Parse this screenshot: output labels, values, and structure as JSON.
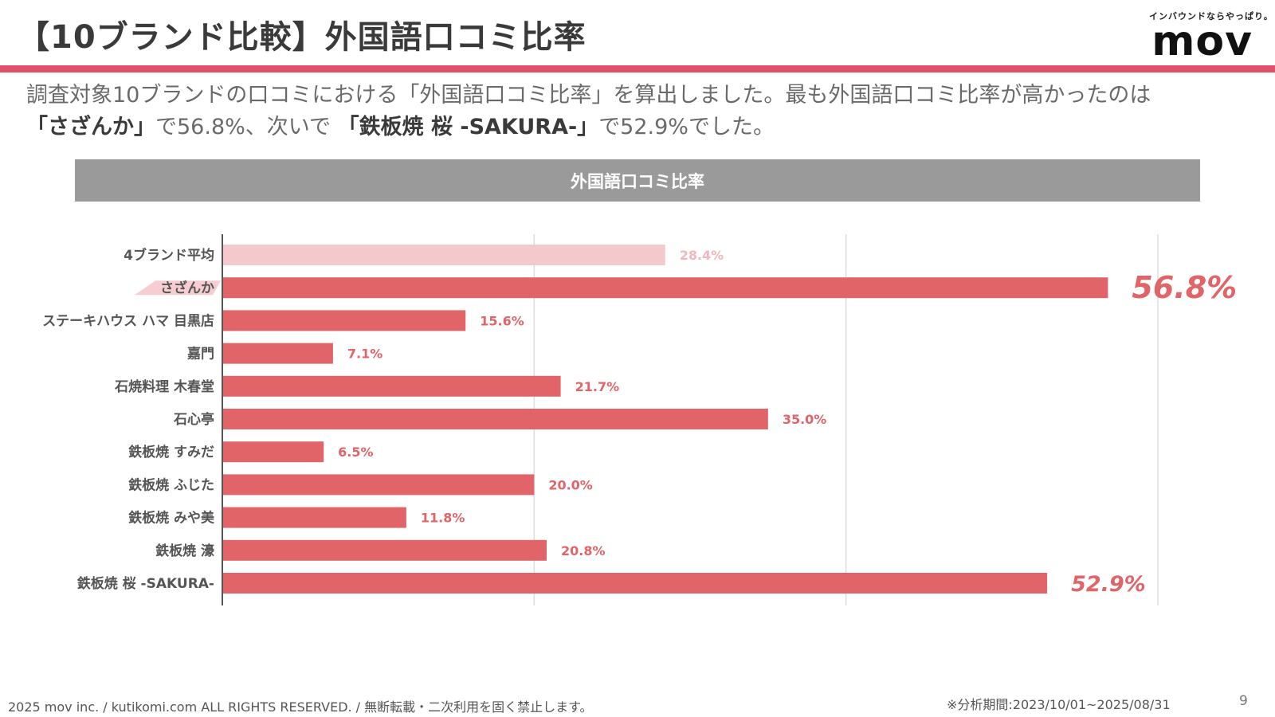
{
  "header": {
    "title": "【10ブランド比較】外国語口コミ比率",
    "logo_tagline": "インバウンドならやっぱり。",
    "logo_word": "mov"
  },
  "description": {
    "line1": "調査対象10ブランドの口コミにおける「外国語口コミ比率」を算出しました。最も外国語口コミ比率が高かったのは",
    "line2_brand1": "「さざんか」",
    "line2_part1": "で56.8%、次いで",
    "line2_brand2": "「鉄板焼 桜 -SAKURA-」",
    "line2_part2": "で52.9%でした。"
  },
  "colors": {
    "bar": "#e06468",
    "bar_average": "#f3c9cc",
    "label_average": "#f0b8bc",
    "accent": "#e0506a",
    "axis": "#555555",
    "grid": "#dddddd",
    "category_text": "#555555"
  },
  "chart_data": {
    "type": "bar",
    "orientation": "horizontal",
    "title": "外国語口コミ比率",
    "categories": [
      "4ブランド平均",
      "さざんか",
      "ステーキハウス ハマ 目黒店",
      "嘉門",
      "石焼料理 木春堂",
      "石心亭",
      "鉄板焼 すみだ",
      "鉄板焼 ふじた",
      "鉄板焼 みや美",
      "鉄板焼 濠",
      "鉄板焼 桜 -SAKURA-"
    ],
    "values": [
      28.4,
      56.8,
      15.6,
      7.1,
      21.7,
      35.0,
      6.5,
      20.0,
      11.8,
      20.8,
      52.9
    ],
    "value_labels": [
      "28.4%",
      "56.8%",
      "15.6%",
      "7.1%",
      "21.7%",
      "35.0%",
      "6.5%",
      "20.0%",
      "11.8%",
      "20.8%",
      "52.9%"
    ],
    "highlight": [
      "さざんか",
      "鉄板焼 桜 -SAKURA-"
    ],
    "average_category": "4ブランド平均",
    "xlim": [
      0,
      60
    ],
    "x_gridlines": [
      20,
      40,
      60
    ],
    "xlabel": "",
    "ylabel": "",
    "grid": true
  },
  "footer": {
    "copyright": "2025 mov inc. / kutikomi.com ALL RIGHTS RESERVED. / 無断転載・二次利用を固く禁止します。",
    "period": "※分析期間:2023/10/01~2025/08/31",
    "page_number": "9"
  }
}
